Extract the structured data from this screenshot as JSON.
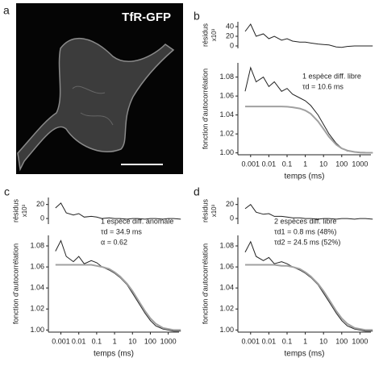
{
  "image": {
    "panel_label": "a",
    "label": "TfR-GFP"
  },
  "chart_data": [
    {
      "type": "line",
      "panel_label": "b",
      "ylabel": "résidus",
      "ylabel_unit": "x10³",
      "xscale": "log",
      "xlim": [
        0.0002,
        4000
      ],
      "x": [
        0.0005,
        0.001,
        0.002,
        0.005,
        0.01,
        0.02,
        0.05,
        0.1,
        0.2,
        0.5,
        1,
        2,
        5,
        10,
        20,
        50,
        100,
        200,
        500,
        1000,
        2000,
        5000
      ],
      "ylim": [
        -5,
        50
      ],
      "yticks": [
        0,
        20,
        40
      ],
      "series": [
        {
          "color": "#222222",
          "values": [
            30,
            45,
            20,
            25,
            15,
            20,
            12,
            15,
            10,
            8,
            8,
            6,
            4,
            3,
            2,
            -2,
            -3,
            -1,
            0,
            0,
            0,
            0
          ]
        }
      ]
    },
    {
      "type": "line",
      "ylabel": "fonction d'autocorrélation",
      "xlabel": "temps (ms)",
      "xscale": "log",
      "xlim": [
        0.0002,
        4000
      ],
      "xticks": [
        0.001,
        0.01,
        0.1,
        1,
        10,
        100,
        1000
      ],
      "x": [
        0.0005,
        0.001,
        0.002,
        0.005,
        0.01,
        0.02,
        0.05,
        0.1,
        0.2,
        0.5,
        1,
        2,
        5,
        10,
        20,
        50,
        100,
        200,
        500,
        1000,
        2000,
        5000
      ],
      "ylim": [
        0.998,
        1.095
      ],
      "yticks": [
        {
          "value": 1,
          "label": "1.00"
        },
        1.02,
        1.04,
        1.06,
        1.08
      ],
      "annotations": [
        "1 espèce diff. libre",
        "τd = 10.6 ms"
      ],
      "series": [
        {
          "color": "#222222",
          "values": [
            1.065,
            1.09,
            1.075,
            1.08,
            1.07,
            1.075,
            1.065,
            1.068,
            1.062,
            1.058,
            1.055,
            1.05,
            1.04,
            1.03,
            1.02,
            1.01,
            1.005,
            1.002,
            1.001,
            1.0,
            1.0,
            1.0
          ]
        },
        {
          "color": "#a0a0a0",
          "values": [
            1.049,
            1.049,
            1.049,
            1.049,
            1.049,
            1.049,
            1.049,
            1.0487,
            1.0481,
            1.0468,
            1.0448,
            1.0412,
            1.0333,
            1.0252,
            1.017,
            1.0086,
            1.0047,
            1.0025,
            1.001,
            1.0005,
            1.0002,
            1.0001
          ]
        }
      ]
    },
    {
      "type": "line",
      "panel_label": "c",
      "ylabel": "résidus",
      "ylabel_unit": "x10³",
      "xscale": "log",
      "xlim": [
        0.0002,
        4000
      ],
      "x": [
        0.0005,
        0.001,
        0.002,
        0.005,
        0.01,
        0.02,
        0.05,
        0.1,
        0.2,
        0.5,
        1,
        2,
        5,
        10,
        20,
        50,
        100,
        200,
        500,
        1000,
        2000,
        5000
      ],
      "ylim": [
        -8,
        30
      ],
      "yticks": [
        0,
        20
      ],
      "series": [
        {
          "color": "#222222",
          "values": [
            15,
            22,
            8,
            5,
            7,
            2,
            3,
            2,
            0,
            1,
            0,
            0,
            -1,
            0,
            0,
            -1,
            0,
            0,
            -1,
            0,
            0,
            -1
          ]
        }
      ]
    },
    {
      "type": "line",
      "ylabel": "fonction d'autocorrélation",
      "xlabel": "temps (ms)",
      "xscale": "log",
      "xlim": [
        0.0002,
        4000
      ],
      "xticks": [
        0.001,
        0.01,
        0.1,
        1,
        10,
        100,
        1000
      ],
      "x": [
        0.0005,
        0.001,
        0.002,
        0.005,
        0.01,
        0.02,
        0.05,
        0.1,
        0.2,
        0.5,
        1,
        2,
        5,
        10,
        20,
        50,
        100,
        200,
        500,
        1000,
        2000,
        5000
      ],
      "ylim": [
        0.998,
        1.09
      ],
      "yticks": [
        {
          "value": 1,
          "label": "1.00"
        },
        1.02,
        1.04,
        1.06,
        1.08
      ],
      "annotations": [
        "1 espèce diff. anomale",
        "τd = 34.9 ms",
        "α = 0.62"
      ],
      "series": [
        {
          "color": "#222222",
          "values": [
            1.075,
            1.085,
            1.07,
            1.065,
            1.07,
            1.063,
            1.066,
            1.064,
            1.06,
            1.057,
            1.054,
            1.05,
            1.043,
            1.035,
            1.027,
            1.016,
            1.009,
            1.004,
            1.001,
            1.0,
            0.999,
            0.999
          ]
        },
        {
          "color": "#a0a0a0",
          "values": [
            1.062,
            1.062,
            1.062,
            1.062,
            1.062,
            1.062,
            1.062,
            1.061,
            1.06,
            1.058,
            1.055,
            1.051,
            1.044,
            1.037,
            1.029,
            1.018,
            1.011,
            1.006,
            1.002,
            1.001,
            1.0,
            1.0
          ]
        }
      ]
    },
    {
      "type": "line",
      "panel_label": "d",
      "ylabel": "résidus",
      "ylabel_unit": "x10³",
      "xscale": "log",
      "xlim": [
        0.0002,
        4000
      ],
      "x": [
        0.0005,
        0.001,
        0.002,
        0.005,
        0.01,
        0.02,
        0.05,
        0.1,
        0.2,
        0.5,
        1,
        2,
        5,
        10,
        20,
        50,
        100,
        200,
        500,
        1000,
        2000,
        5000
      ],
      "ylim": [
        -8,
        30
      ],
      "yticks": [
        0,
        20
      ],
      "series": [
        {
          "color": "#222222",
          "values": [
            14,
            20,
            9,
            6,
            7,
            3,
            3,
            2,
            1,
            1,
            0,
            0,
            -1,
            0,
            0,
            -1,
            0,
            0,
            -1,
            0,
            0,
            -1
          ]
        }
      ]
    },
    {
      "type": "line",
      "ylabel": "fonction d'autocorrélation",
      "xlabel": "temps (ms)",
      "xscale": "log",
      "xlim": [
        0.0002,
        4000
      ],
      "xticks": [
        0.001,
        0.01,
        0.1,
        1,
        10,
        100,
        1000
      ],
      "x": [
        0.0005,
        0.001,
        0.002,
        0.005,
        0.01,
        0.02,
        0.05,
        0.1,
        0.2,
        0.5,
        1,
        2,
        5,
        10,
        20,
        50,
        100,
        200,
        500,
        1000,
        2000,
        5000
      ],
      "ylim": [
        0.998,
        1.09
      ],
      "yticks": [
        {
          "value": 1,
          "label": "1.00"
        },
        1.02,
        1.04,
        1.06,
        1.08
      ],
      "annotations": [
        "2 espèces diff. libre",
        "τd1 = 0.8 ms (48%)",
        "τd2 = 24.5 ms (52%)"
      ],
      "series": [
        {
          "color": "#222222",
          "values": [
            1.074,
            1.084,
            1.07,
            1.066,
            1.069,
            1.063,
            1.065,
            1.063,
            1.06,
            1.057,
            1.054,
            1.05,
            1.043,
            1.035,
            1.027,
            1.016,
            1.009,
            1.004,
            1.001,
            1.0,
            0.999,
            0.999
          ]
        },
        {
          "color": "#a0a0a0",
          "values": [
            1.062,
            1.062,
            1.062,
            1.062,
            1.062,
            1.062,
            1.061,
            1.061,
            1.06,
            1.058,
            1.055,
            1.051,
            1.044,
            1.037,
            1.029,
            1.018,
            1.011,
            1.006,
            1.002,
            1.001,
            1.0,
            1.0
          ]
        }
      ]
    }
  ]
}
